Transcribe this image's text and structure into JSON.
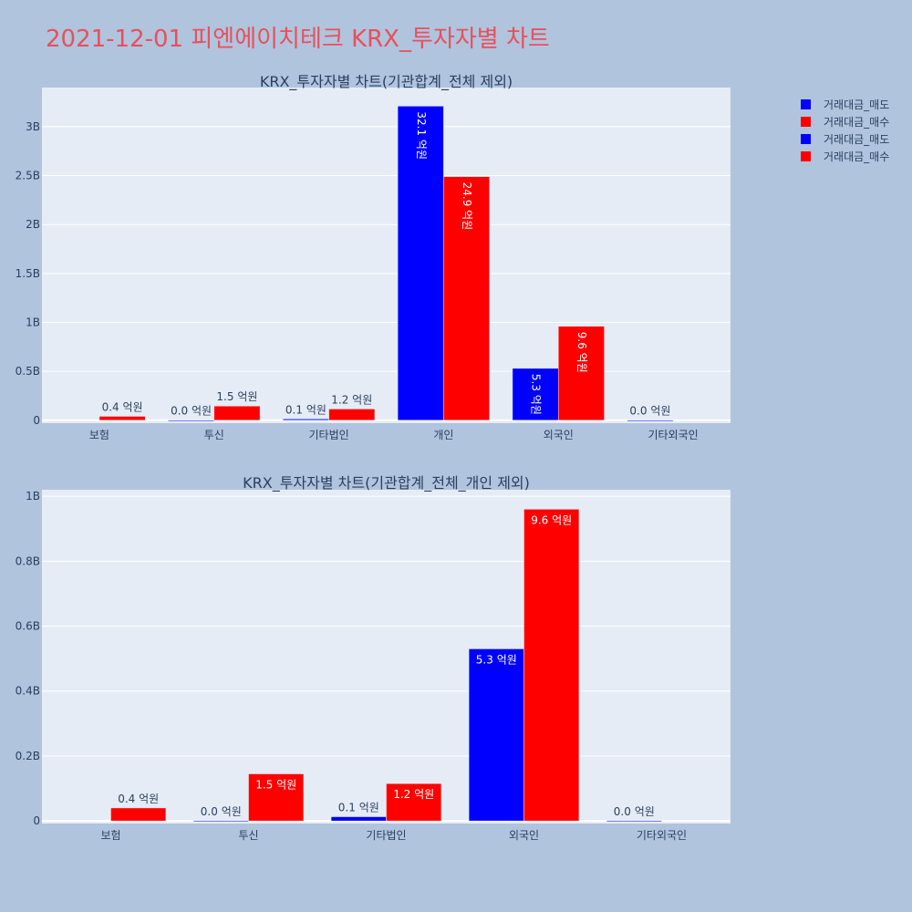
{
  "page": {
    "title": "2021-12-01 피엔에이치테크 KRX_투자자별 차트"
  },
  "legend": {
    "items": [
      {
        "label": "거래대금_매도",
        "color": "#0000ff"
      },
      {
        "label": "거래대금_매수",
        "color": "#ff0000"
      },
      {
        "label": "거래대금_매도",
        "color": "#0000ff"
      },
      {
        "label": "거래대금_매수",
        "color": "#ff0000"
      }
    ]
  },
  "chart_data": [
    {
      "type": "bar",
      "title": "KRX_투자자별 차트(기관합계_전체 제외)",
      "categories": [
        "보험",
        "투신",
        "기타법인",
        "개인",
        "외국인",
        "기타외국인"
      ],
      "series": [
        {
          "name": "거래대금_매도",
          "color": "#0000ff",
          "values": [
            0,
            1000000,
            13000000,
            3210000000,
            530000000,
            1000000
          ],
          "labels": [
            "",
            "0.0 억원",
            "0.1 억원",
            "32.1 억원",
            "5.3 억원",
            "0.0 억원"
          ]
        },
        {
          "name": "거래대금_매수",
          "color": "#ff0000",
          "values": [
            40000000,
            145000000,
            115000000,
            2490000000,
            960000000,
            0
          ],
          "labels": [
            "0.4 억원",
            "1.5 억원",
            "1.2 억원",
            "24.9 억원",
            "9.6 억원",
            ""
          ]
        }
      ],
      "ylim": [
        -30000000,
        3400000000
      ],
      "yticks": [
        0,
        500000000,
        1000000000,
        1500000000,
        2000000000,
        2500000000,
        3000000000
      ],
      "ytick_labels": [
        "0",
        "0.5B",
        "1B",
        "1.5B",
        "2B",
        "2.5B",
        "3B"
      ],
      "grid": true
    },
    {
      "type": "bar",
      "title": "KRX_투자자별 차트(기관합계_전체_개인 제외)",
      "categories": [
        "보험",
        "투신",
        "기타법인",
        "외국인",
        "기타외국인"
      ],
      "series": [
        {
          "name": "거래대금_매도",
          "color": "#0000ff",
          "values": [
            0,
            1000000,
            13000000,
            530000000,
            1000000
          ],
          "labels": [
            "",
            "0.0 억원",
            "0.1 억원",
            "5.3 억원",
            "0.0 억원"
          ]
        },
        {
          "name": "거래대금_매수",
          "color": "#ff0000",
          "values": [
            40000000,
            145000000,
            115000000,
            960000000,
            0
          ],
          "labels": [
            "0.4 억원",
            "1.5 억원",
            "1.2 억원",
            "9.6 억원",
            ""
          ]
        }
      ],
      "ylim": [
        -8000000,
        1020000000
      ],
      "yticks": [
        0,
        200000000,
        400000000,
        600000000,
        800000000,
        1000000000
      ],
      "ytick_labels": [
        "0",
        "0.2B",
        "0.4B",
        "0.6B",
        "0.8B",
        "1B"
      ],
      "grid": true
    }
  ]
}
